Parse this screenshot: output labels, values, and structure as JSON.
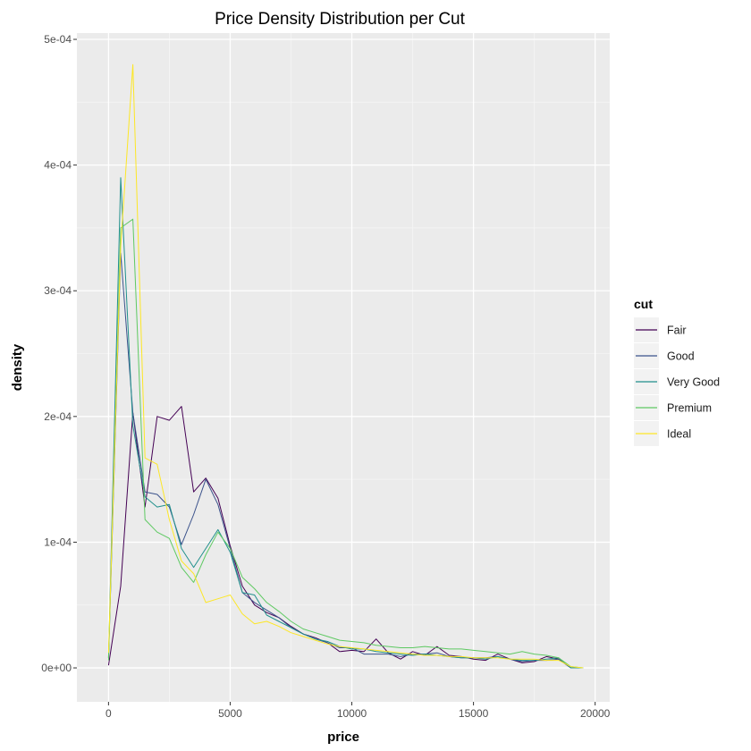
{
  "chart_data": {
    "type": "line",
    "title": "Price Density Distribution per Cut",
    "xlabel": "price",
    "ylabel": "density",
    "xlim": [
      -1300,
      20600
    ],
    "ylim": [
      -2.7e-05,
      0.000505
    ],
    "x_ticks": [
      0,
      5000,
      10000,
      15000,
      20000
    ],
    "x_tick_labels": [
      "0",
      "5000",
      "10000",
      "15000",
      "20000"
    ],
    "y_ticks": [
      0,
      0.0001,
      0.0002,
      0.0003,
      0.0004,
      0.0005
    ],
    "y_tick_labels": [
      "0e+00",
      "1e-04",
      "2e-04",
      "3e-04",
      "4e-04",
      "5e-04"
    ],
    "grid": true,
    "legend": {
      "title": "cut",
      "position": "right"
    },
    "series": [
      {
        "name": "Fair",
        "color": "#440154",
        "points": [
          [
            0,
            2e-06
          ],
          [
            500,
            6.5e-05
          ],
          [
            1000,
            0.000203
          ],
          [
            1500,
            0.000128
          ],
          [
            2000,
            0.0002
          ],
          [
            2500,
            0.000197
          ],
          [
            3000,
            0.000208
          ],
          [
            3500,
            0.00014
          ],
          [
            4000,
            0.000151
          ],
          [
            4500,
            0.000135
          ],
          [
            5000,
            9.7e-05
          ],
          [
            5500,
            6.5e-05
          ],
          [
            6000,
            5e-05
          ],
          [
            6500,
            4.4e-05
          ],
          [
            7000,
            4e-05
          ],
          [
            7500,
            3.3e-05
          ],
          [
            8000,
            2.7e-05
          ],
          [
            8500,
            2.4e-05
          ],
          [
            9000,
            2e-05
          ],
          [
            9500,
            1.3e-05
          ],
          [
            10000,
            1.4e-05
          ],
          [
            10500,
            1.3e-05
          ],
          [
            11000,
            2.3e-05
          ],
          [
            11500,
            1.2e-05
          ],
          [
            12000,
            7e-06
          ],
          [
            12500,
            1.3e-05
          ],
          [
            13000,
            1e-05
          ],
          [
            13500,
            1.7e-05
          ],
          [
            14000,
            1e-05
          ],
          [
            14500,
            9e-06
          ],
          [
            15000,
            7e-06
          ],
          [
            15500,
            6e-06
          ],
          [
            16000,
            1.1e-05
          ],
          [
            16500,
            7e-06
          ],
          [
            17000,
            4e-06
          ],
          [
            17500,
            5e-06
          ],
          [
            18000,
            9e-06
          ],
          [
            18500,
            7e-06
          ],
          [
            19000,
            0
          ],
          [
            19500,
            0
          ]
        ]
      },
      {
        "name": "Good",
        "color": "#3b528b",
        "points": [
          [
            0,
            8e-06
          ],
          [
            500,
            0.00033
          ],
          [
            1000,
            0.000203
          ],
          [
            1500,
            0.00014
          ],
          [
            2000,
            0.000138
          ],
          [
            2500,
            0.000128
          ],
          [
            3000,
            9.8e-05
          ],
          [
            3500,
            0.000122
          ],
          [
            4000,
            0.00015
          ],
          [
            4500,
            0.00013
          ],
          [
            5000,
            9.5e-05
          ],
          [
            5500,
            6e-05
          ],
          [
            6000,
            5.2e-05
          ],
          [
            6500,
            4.6e-05
          ],
          [
            7000,
            4e-05
          ],
          [
            7500,
            3.2e-05
          ],
          [
            8000,
            2.7e-05
          ],
          [
            8500,
            2.3e-05
          ],
          [
            9000,
            2e-05
          ],
          [
            9500,
            1.6e-05
          ],
          [
            10000,
            1.6e-05
          ],
          [
            10500,
            1.1e-05
          ],
          [
            11000,
            1.1e-05
          ],
          [
            11500,
            1.1e-05
          ],
          [
            12000,
            9e-06
          ],
          [
            12500,
            1.1e-05
          ],
          [
            13000,
            1.1e-05
          ],
          [
            13500,
            1.2e-05
          ],
          [
            14000,
            9e-06
          ],
          [
            14500,
            8e-06
          ],
          [
            15000,
            8e-06
          ],
          [
            15500,
            8e-06
          ],
          [
            16000,
            9e-06
          ],
          [
            16500,
            7e-06
          ],
          [
            17000,
            5e-06
          ],
          [
            17500,
            6e-06
          ],
          [
            18000,
            6e-06
          ],
          [
            18500,
            7e-06
          ],
          [
            19000,
            0
          ],
          [
            19500,
            0
          ]
        ]
      },
      {
        "name": "Very Good",
        "color": "#21908c",
        "points": [
          [
            0,
            8e-06
          ],
          [
            500,
            0.00039
          ],
          [
            1000,
            0.000193
          ],
          [
            1500,
            0.000136
          ],
          [
            2000,
            0.000128
          ],
          [
            2500,
            0.00013
          ],
          [
            3000,
            9.5e-05
          ],
          [
            3500,
            8e-05
          ],
          [
            4000,
            9.5e-05
          ],
          [
            4500,
            0.00011
          ],
          [
            5000,
            9.2e-05
          ],
          [
            5500,
            6e-05
          ],
          [
            6000,
            5.8e-05
          ],
          [
            6500,
            4.2e-05
          ],
          [
            7000,
            3.7e-05
          ],
          [
            7500,
            3.2e-05
          ],
          [
            8000,
            2.7e-05
          ],
          [
            8500,
            2.3e-05
          ],
          [
            9000,
            2.1e-05
          ],
          [
            9500,
            1.7e-05
          ],
          [
            10000,
            1.5e-05
          ],
          [
            10500,
            1.5e-05
          ],
          [
            11000,
            1.3e-05
          ],
          [
            11500,
            1.2e-05
          ],
          [
            12000,
            1.1e-05
          ],
          [
            12500,
            1e-05
          ],
          [
            13000,
            1.1e-05
          ],
          [
            13500,
            1e-05
          ],
          [
            14000,
            9e-06
          ],
          [
            14500,
            8e-06
          ],
          [
            15000,
            8e-06
          ],
          [
            15500,
            7e-06
          ],
          [
            16000,
            9e-06
          ],
          [
            16500,
            7e-06
          ],
          [
            17000,
            6e-06
          ],
          [
            17500,
            6e-06
          ],
          [
            18000,
            7e-06
          ],
          [
            18500,
            8e-06
          ],
          [
            19000,
            0
          ],
          [
            19500,
            0
          ]
        ]
      },
      {
        "name": "Premium",
        "color": "#5ec962",
        "points": [
          [
            0,
            6e-06
          ],
          [
            500,
            0.00035
          ],
          [
            1000,
            0.000357
          ],
          [
            1500,
            0.000118
          ],
          [
            2000,
            0.000108
          ],
          [
            2500,
            0.000103
          ],
          [
            3000,
            8e-05
          ],
          [
            3500,
            6.8e-05
          ],
          [
            4000,
            9e-05
          ],
          [
            4500,
            0.000108
          ],
          [
            5000,
            9.5e-05
          ],
          [
            5500,
            7.2e-05
          ],
          [
            6000,
            6.3e-05
          ],
          [
            6500,
            5.2e-05
          ],
          [
            7000,
            4.5e-05
          ],
          [
            7500,
            3.7e-05
          ],
          [
            8000,
            3.1e-05
          ],
          [
            8500,
            2.8e-05
          ],
          [
            9000,
            2.5e-05
          ],
          [
            9500,
            2.2e-05
          ],
          [
            10000,
            2.1e-05
          ],
          [
            10500,
            2e-05
          ],
          [
            11000,
            1.8e-05
          ],
          [
            11500,
            1.7e-05
          ],
          [
            12000,
            1.6e-05
          ],
          [
            12500,
            1.6e-05
          ],
          [
            13000,
            1.7e-05
          ],
          [
            13500,
            1.6e-05
          ],
          [
            14000,
            1.5e-05
          ],
          [
            14500,
            1.5e-05
          ],
          [
            15000,
            1.4e-05
          ],
          [
            15500,
            1.3e-05
          ],
          [
            16000,
            1.2e-05
          ],
          [
            16500,
            1.1e-05
          ],
          [
            17000,
            1.3e-05
          ],
          [
            17500,
            1.1e-05
          ],
          [
            18000,
            1e-05
          ],
          [
            18500,
            8e-06
          ],
          [
            19000,
            1e-06
          ],
          [
            19500,
            0
          ]
        ]
      },
      {
        "name": "Ideal",
        "color": "#fde725",
        "points": [
          [
            0,
            1.2e-05
          ],
          [
            500,
            0.000335
          ],
          [
            1000,
            0.00048
          ],
          [
            1500,
            0.000167
          ],
          [
            2000,
            0.000162
          ],
          [
            2500,
            0.000118
          ],
          [
            3000,
            8.5e-05
          ],
          [
            3500,
            7.5e-05
          ],
          [
            4000,
            5.2e-05
          ],
          [
            4500,
            5.5e-05
          ],
          [
            5000,
            5.8e-05
          ],
          [
            5500,
            4.3e-05
          ],
          [
            6000,
            3.5e-05
          ],
          [
            6500,
            3.7e-05
          ],
          [
            7000,
            3.3e-05
          ],
          [
            7500,
            2.8e-05
          ],
          [
            8000,
            2.5e-05
          ],
          [
            8500,
            2.2e-05
          ],
          [
            9000,
            1.9e-05
          ],
          [
            9500,
            1.7e-05
          ],
          [
            10000,
            1.6e-05
          ],
          [
            10500,
            1.5e-05
          ],
          [
            11000,
            1.4e-05
          ],
          [
            11500,
            1.3e-05
          ],
          [
            12000,
            1.2e-05
          ],
          [
            12500,
            1.1e-05
          ],
          [
            13000,
            1e-05
          ],
          [
            13500,
            1e-05
          ],
          [
            14000,
            9e-06
          ],
          [
            14500,
            9e-06
          ],
          [
            15000,
            8e-06
          ],
          [
            15500,
            8e-06
          ],
          [
            16000,
            8e-06
          ],
          [
            16500,
            7e-06
          ],
          [
            17000,
            7e-06
          ],
          [
            17500,
            7e-06
          ],
          [
            18000,
            6e-06
          ],
          [
            18500,
            6e-06
          ],
          [
            19000,
            1e-06
          ],
          [
            19500,
            0
          ]
        ]
      }
    ]
  }
}
